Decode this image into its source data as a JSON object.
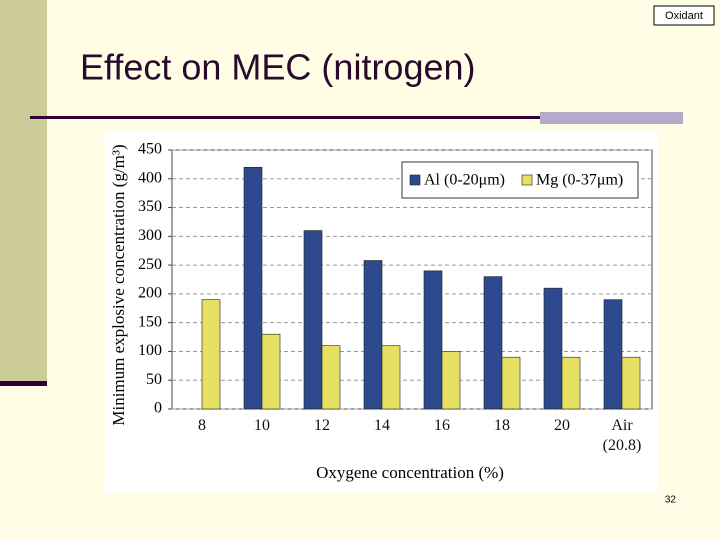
{
  "title": "Effect on MEC (nitrogen)",
  "tag": "Oxidant",
  "page_number": "32",
  "chart_data": {
    "type": "bar",
    "ylabel": "Minimum explosive concentration (g/m³)",
    "xlabel": "Oxygene concentration (%)",
    "categories": [
      "8",
      "10",
      "12",
      "14",
      "16",
      "18",
      "20",
      "Air (20.8)"
    ],
    "series": [
      {
        "name": "Al (0-20μm)",
        "color": "#2e4a8f",
        "values": [
          null,
          420,
          310,
          258,
          240,
          230,
          210,
          190
        ]
      },
      {
        "name": "Mg (0-37μm)",
        "color": "#e6e062",
        "values": [
          190,
          130,
          110,
          110,
          100,
          90,
          90,
          90
        ]
      }
    ],
    "ylim": [
      0,
      450
    ],
    "yticks": [
      0,
      50,
      100,
      150,
      200,
      250,
      300,
      350,
      400,
      450
    ],
    "grid": true,
    "legend": "upper right"
  }
}
